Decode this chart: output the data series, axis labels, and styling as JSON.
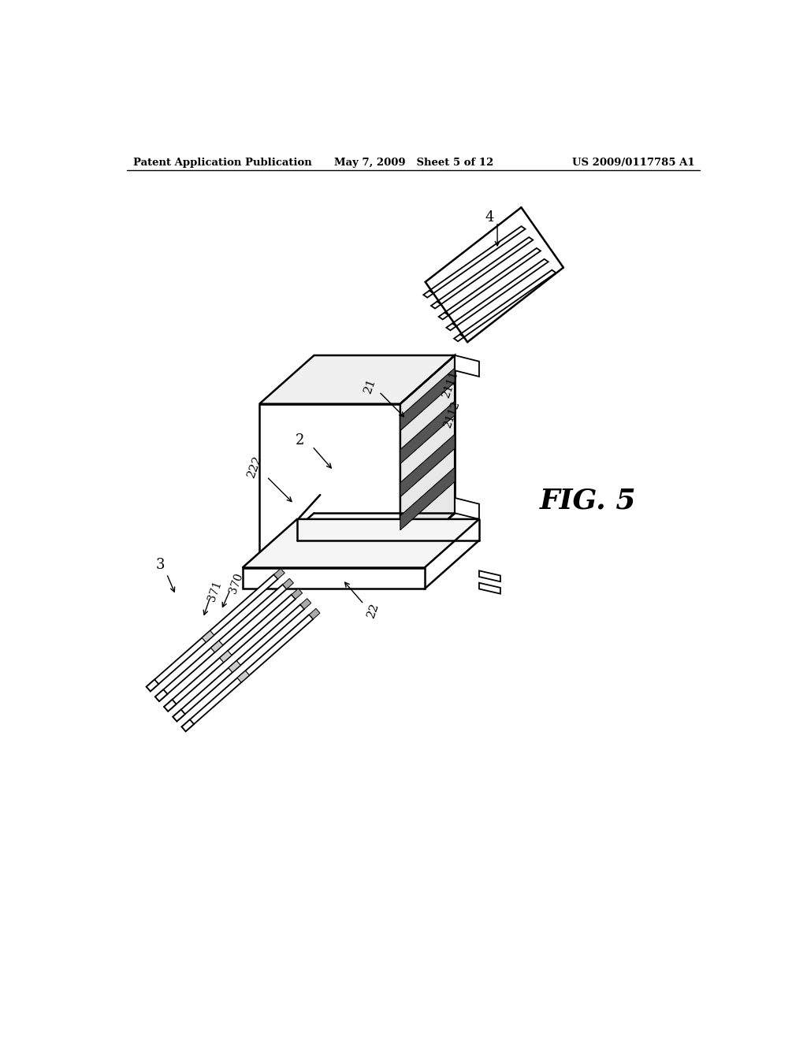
{
  "bg_color": "#ffffff",
  "header_left": "Patent Application Publication",
  "header_mid": "May 7, 2009   Sheet 5 of 12",
  "header_right": "US 2009/0117785 A1",
  "fig_label": "FIG. 5",
  "line_color": "#000000",
  "lw": 1.3,
  "lw_thick": 1.8
}
